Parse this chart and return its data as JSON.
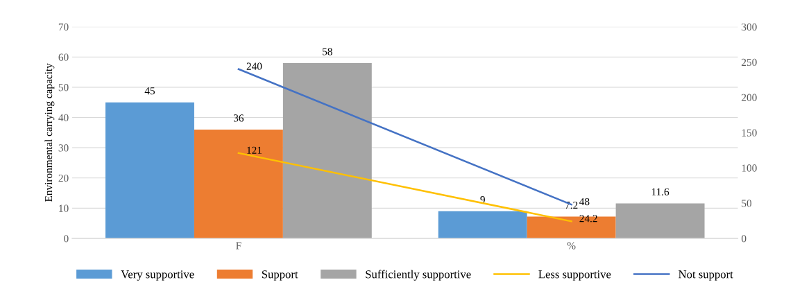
{
  "chart_data": {
    "type": "bar",
    "ylabel": "Environmental carrying capacity",
    "categories": [
      "F",
      "%"
    ],
    "series": [
      {
        "name": "Very supportive",
        "color": "#5b9bd5",
        "values": [
          45,
          9
        ]
      },
      {
        "name": "Support",
        "color": "#ed7d31",
        "values": [
          36,
          7.2
        ]
      },
      {
        "name": "Sufficiently supportive",
        "color": "#a5a5a5",
        "values": [
          58,
          11.6
        ]
      },
      {
        "name": "Less supportive",
        "type": "line",
        "axis": "y2",
        "color": "#ffc000",
        "values": [
          121,
          24.2
        ]
      },
      {
        "name": "Not support",
        "type": "line",
        "axis": "y2",
        "color": "#4472c4",
        "values": [
          240,
          48
        ]
      }
    ],
    "ylim": [
      0,
      70
    ],
    "yticks": [
      0,
      10,
      20,
      30,
      40,
      50,
      60,
      70
    ],
    "y2lim": [
      0,
      300
    ],
    "y2ticks": [
      0,
      50,
      100,
      150,
      200,
      250,
      300
    ],
    "grid": "y",
    "legend": "bottom",
    "data_labels": true,
    "marker": "none",
    "line_style": "solid"
  }
}
